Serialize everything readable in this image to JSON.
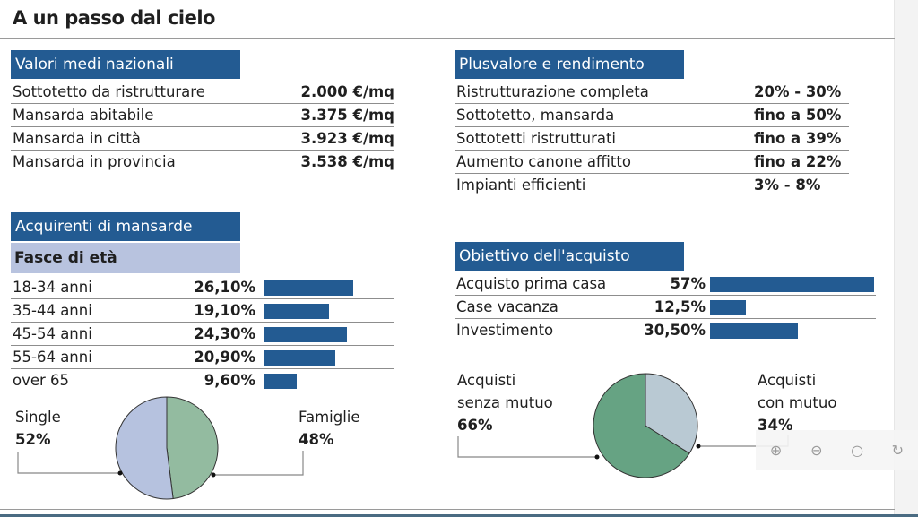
{
  "title": "A un passo dal cielo",
  "valori": {
    "header": "Valori medi nazionali",
    "rows": [
      {
        "label": "Sottotetto da ristrutturare",
        "value": "2.000 €/mq"
      },
      {
        "label": "Mansarda abitabile",
        "value": "3.375 €/mq"
      },
      {
        "label": "Mansarda in città",
        "value": "3.923 €/mq"
      },
      {
        "label": "Mansarda in provincia",
        "value": "3.538 €/mq"
      }
    ]
  },
  "plusvalore": {
    "header": "Plusvalore e rendimento",
    "rows": [
      {
        "label": "Ristrutturazione completa",
        "value": "20% - 30%"
      },
      {
        "label": "Sottotetto, mansarda",
        "value": "fino a 50%"
      },
      {
        "label": "Sottotetti ristrutturati",
        "value": "fino a 39%"
      },
      {
        "label": "Aumento canone affitto",
        "value": "fino a 22%"
      },
      {
        "label": "Impianti efficienti",
        "value": "3% - 8%"
      }
    ]
  },
  "acquirenti": {
    "header": "Acquirenti di mansarde",
    "subheader": "Fasce di età",
    "rows": [
      {
        "label": "18-34 anni",
        "value": "26,10%",
        "pct": 26.1
      },
      {
        "label": "35-44 anni",
        "value": "19,10%",
        "pct": 19.1
      },
      {
        "label": "45-54 anni",
        "value": "24,30%",
        "pct": 24.3
      },
      {
        "label": "55-64 anni",
        "value": "20,90%",
        "pct": 20.9
      },
      {
        "label": "over 65",
        "value": "9,60%",
        "pct": 9.6
      }
    ],
    "pie": {
      "slices": [
        {
          "label": "Single",
          "value": "52%",
          "pct": 52,
          "color": "#b6c2df"
        },
        {
          "label": "Famiglie",
          "value": "48%",
          "pct": 48,
          "color": "#93bba0"
        }
      ]
    }
  },
  "obiettivo": {
    "header": "Obiettivo dell'acquisto",
    "rows": [
      {
        "label": "Acquisto prima casa",
        "value": "57%",
        "pct": 57
      },
      {
        "label": "Case vacanza",
        "value": "12,5%",
        "pct": 12.5
      },
      {
        "label": "Investimento",
        "value": "30,50%",
        "pct": 30.5
      }
    ],
    "pie": {
      "slices": [
        {
          "label1": "Acquisti",
          "label2": "con mutuo",
          "value": "34%",
          "pct": 34,
          "color": "#b9c9d3"
        },
        {
          "label1": "Acquisti",
          "label2": "senza mutuo",
          "value": "66%",
          "pct": 66,
          "color": "#66a383"
        }
      ]
    }
  },
  "toolbar": {
    "icons": [
      "zoom-in-icon",
      "zoom-out-icon",
      "search-icon",
      "rotate-icon"
    ]
  },
  "colors": {
    "accent": "#235b92",
    "subheader": "#b8c3df"
  }
}
